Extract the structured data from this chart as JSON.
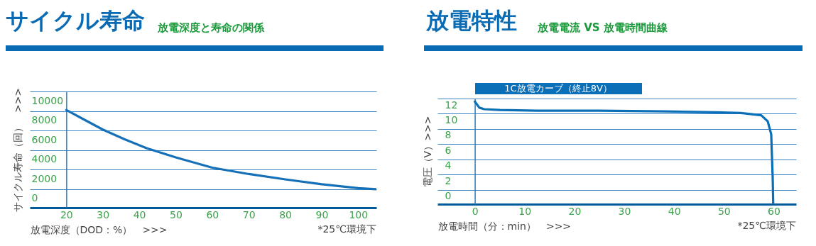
{
  "chart_data": [
    {
      "type": "line",
      "title": "サイクル寿命",
      "subtitle": "放電深度と寿命の関係",
      "xlabel": "放電深度（DOD：%）　>>>",
      "ylabel": "サイクル寿命（回）　>>>",
      "annotations": [
        "*25℃環境下"
      ],
      "x": [
        20,
        25,
        30,
        36,
        42,
        50,
        60,
        70,
        80,
        90,
        100,
        105
      ],
      "series": [
        {
          "color": "#1670b8",
          "values": [
            8100,
            7100,
            6100,
            5100,
            4200,
            3250,
            2200,
            1550,
            1000,
            500,
            100,
            0
          ]
        }
      ],
      "xlim": [
        10,
        105
      ],
      "ylim": [
        -1900,
        10000
      ],
      "xticks": [
        20,
        30,
        40,
        50,
        60,
        70,
        80,
        90,
        100
      ],
      "yticks": [
        0,
        2000,
        4000,
        6000,
        8000,
        10000
      ],
      "grid": "y"
    },
    {
      "type": "line",
      "title": "放電特性",
      "subtitle": "放電電流 VS 放電時間曲線",
      "xlabel": "放電時間（分：min）　>>>",
      "ylabel": "電圧（V）>>>",
      "annotations": [
        "*25℃環境下"
      ],
      "x": [
        0,
        0.9,
        1.9,
        5,
        12.6,
        25,
        38.1,
        48,
        53.4,
        57.5,
        58.8,
        59.5,
        59.8,
        59.9
      ],
      "series": [
        {
          "name": "1C放電カーブ（終止8V）",
          "color": "#0b6fb8",
          "values": [
            11.6,
            10.8,
            10.6,
            10.5,
            10.4,
            10.4,
            10.3,
            10.2,
            10.1,
            9.8,
            9.0,
            7.3,
            1.5,
            -1.8
          ]
        }
      ],
      "xlim": [
        -7.5,
        64.5
      ],
      "ylim": [
        -1.9,
        12
      ],
      "xticks": [
        0,
        10,
        20,
        30,
        40,
        50,
        60
      ],
      "yticks": [
        0,
        2,
        4,
        6,
        8,
        10,
        12
      ],
      "grid": "y"
    }
  ]
}
